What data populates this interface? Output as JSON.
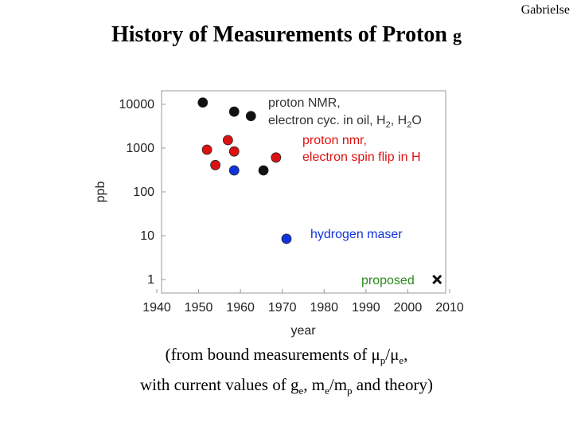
{
  "header": {
    "author": "Gabrielse"
  },
  "title": {
    "text": "History of Measurements of Proton",
    "symbol": "g"
  },
  "caption": {
    "line1_prefix": "(from bound measurements of ",
    "mu1": "μ",
    "sub_p": "p",
    "slash": "/",
    "mu2": "μ",
    "sub_e1": "e",
    "line1_suffix": ",",
    "line2_prefix": "with current values of g",
    "sub_e2": "e",
    "sep": ", m",
    "sub_e3": "e",
    "m2": "/m",
    "sub_p2": "p",
    "line2_suffix": " and theory)"
  },
  "colors": {
    "black": "#111111",
    "red": "#dd1111",
    "blue": "#1133dd",
    "green": "#2a8a1a",
    "gray": "#888888"
  },
  "chart_data": {
    "type": "scatter",
    "xlabel": "year",
    "ylabel": "ppb",
    "xlim": [
      1940,
      2010
    ],
    "ylim": [
      0.6,
      18000
    ],
    "yscale": "log",
    "xticks": [
      1940,
      1950,
      1960,
      1970,
      1980,
      1990,
      2000,
      2010
    ],
    "yticks": [
      1,
      10,
      100,
      1000,
      10000
    ],
    "ytick_labels": [
      "1",
      "10",
      "100",
      "1000",
      "10000"
    ],
    "series": [
      {
        "color": "#111111",
        "marker": "circle",
        "points": [
          {
            "x": 1951,
            "y": 11000
          },
          {
            "x": 1958.5,
            "y": 6800
          },
          {
            "x": 1962.5,
            "y": 5400
          },
          {
            "x": 1965.5,
            "y": 310
          }
        ]
      },
      {
        "color": "#dd1111",
        "marker": "circle",
        "points": [
          {
            "x": 1952,
            "y": 920
          },
          {
            "x": 1954,
            "y": 410
          },
          {
            "x": 1957,
            "y": 1520
          },
          {
            "x": 1958.5,
            "y": 840
          },
          {
            "x": 1968.5,
            "y": 610
          }
        ]
      },
      {
        "color": "#1133dd",
        "marker": "circle",
        "points": [
          {
            "x": 1958.5,
            "y": 310
          },
          {
            "x": 1971,
            "y": 8.5
          }
        ]
      },
      {
        "color": "#111111",
        "marker": "x",
        "points": [
          {
            "x": 2007,
            "y": 1.0
          }
        ]
      }
    ],
    "annotations": [
      {
        "key": "nmr1",
        "text": "proton NMR,",
        "color": "#333333"
      },
      {
        "key": "nmr2",
        "text": "electron cyc. in oil, H",
        "sub1": "2",
        "mid": ", H",
        "sub2": "2",
        "end": "O",
        "color": "#333333"
      },
      {
        "key": "spin1",
        "text": "proton nmr,",
        "color": "#dd1111"
      },
      {
        "key": "spin2",
        "text": "electron spin flip in H",
        "color": "#dd1111"
      },
      {
        "key": "maser",
        "text": "hydrogen maser",
        "color": "#1133dd"
      },
      {
        "key": "proposed",
        "text": "proposed",
        "color": "#2a8a1a"
      }
    ]
  }
}
